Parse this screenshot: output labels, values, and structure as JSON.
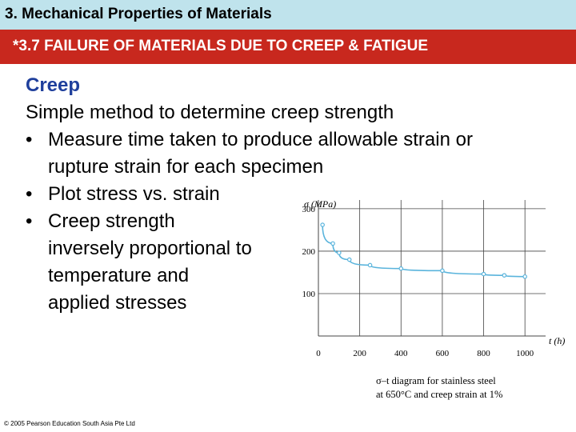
{
  "header": {
    "title": "3. Mechanical Properties of Materials"
  },
  "banner": {
    "title": "*3.7 FAILURE OF MATERIALS DUE TO CREEP & FATIGUE"
  },
  "content": {
    "heading": "Creep",
    "intro": "Simple method to determine creep strength",
    "bullet_char": "•",
    "bullets": [
      {
        "lines": [
          "Measure time taken to produce allowable strain or",
          "rupture strain for each specimen"
        ]
      },
      {
        "lines": [
          "Plot stress vs. strain"
        ]
      },
      {
        "lines": [
          "Creep strength",
          "inversely proportional to",
          "temperature and",
          "applied stresses"
        ]
      }
    ]
  },
  "footer": {
    "copyright": "© 2005 Pearson Education South Asia Pte Ltd"
  },
  "figure": {
    "caption_line1": "σ–t diagram for stainless steel",
    "caption_line2": "at 650°C and creep strain at 1%"
  },
  "chart_data": {
    "type": "line",
    "ylabel": "σ (MPa)",
    "xlabel": "t (h)",
    "x_ticks": [
      0,
      200,
      400,
      600,
      800,
      1000
    ],
    "y_ticks": [
      100,
      200,
      300
    ],
    "xlim": [
      0,
      1100
    ],
    "ylim": [
      0,
      330
    ],
    "series": [
      {
        "x": [
          20,
          70,
          100,
          150,
          250,
          400,
          600,
          800,
          900,
          1000
        ],
        "y": [
          262,
          218,
          196,
          180,
          167,
          159,
          154,
          146,
          143,
          140
        ]
      }
    ],
    "colors": {
      "curve": "#5ab4dc",
      "grid": "#444444"
    }
  }
}
